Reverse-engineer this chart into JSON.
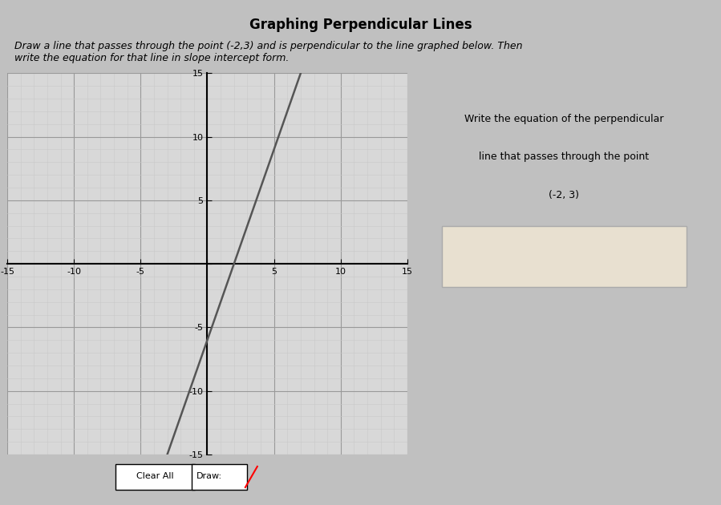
{
  "title": "Graphing Perpendicular Lines",
  "instruction": "Draw a line that passes through the point (-2,3) and is perpendicular to the line graphed below. Then\nwrite the equation for that line in slope intercept form.",
  "side_text_line1": "Write the equation of the perpendicular",
  "side_text_line2": "line that passes through the point",
  "side_text_line3": "(-2, 3)",
  "xlim": [
    -15,
    15
  ],
  "ylim": [
    -15,
    15
  ],
  "xticks": [
    -15,
    -10,
    -5,
    0,
    5,
    10,
    15
  ],
  "yticks": [
    -15,
    -10,
    -5,
    0,
    5,
    10,
    15
  ],
  "grid_minor_color": "#c8c8c8",
  "grid_major_color": "#999999",
  "grid_bg_color": "#d8d8d8",
  "line_x": [
    0,
    4
  ],
  "line_y": [
    -6,
    6
  ],
  "line_color": "#555555",
  "line_width": 1.8,
  "line_slope": 3,
  "line_intercept": -6,
  "button_clear_label": "Clear All",
  "button_draw_label": "Draw:",
  "outer_bg": "#c0c0c0",
  "panel_bg": "#d0d0d0",
  "answer_box_color": "#e8e0d0"
}
